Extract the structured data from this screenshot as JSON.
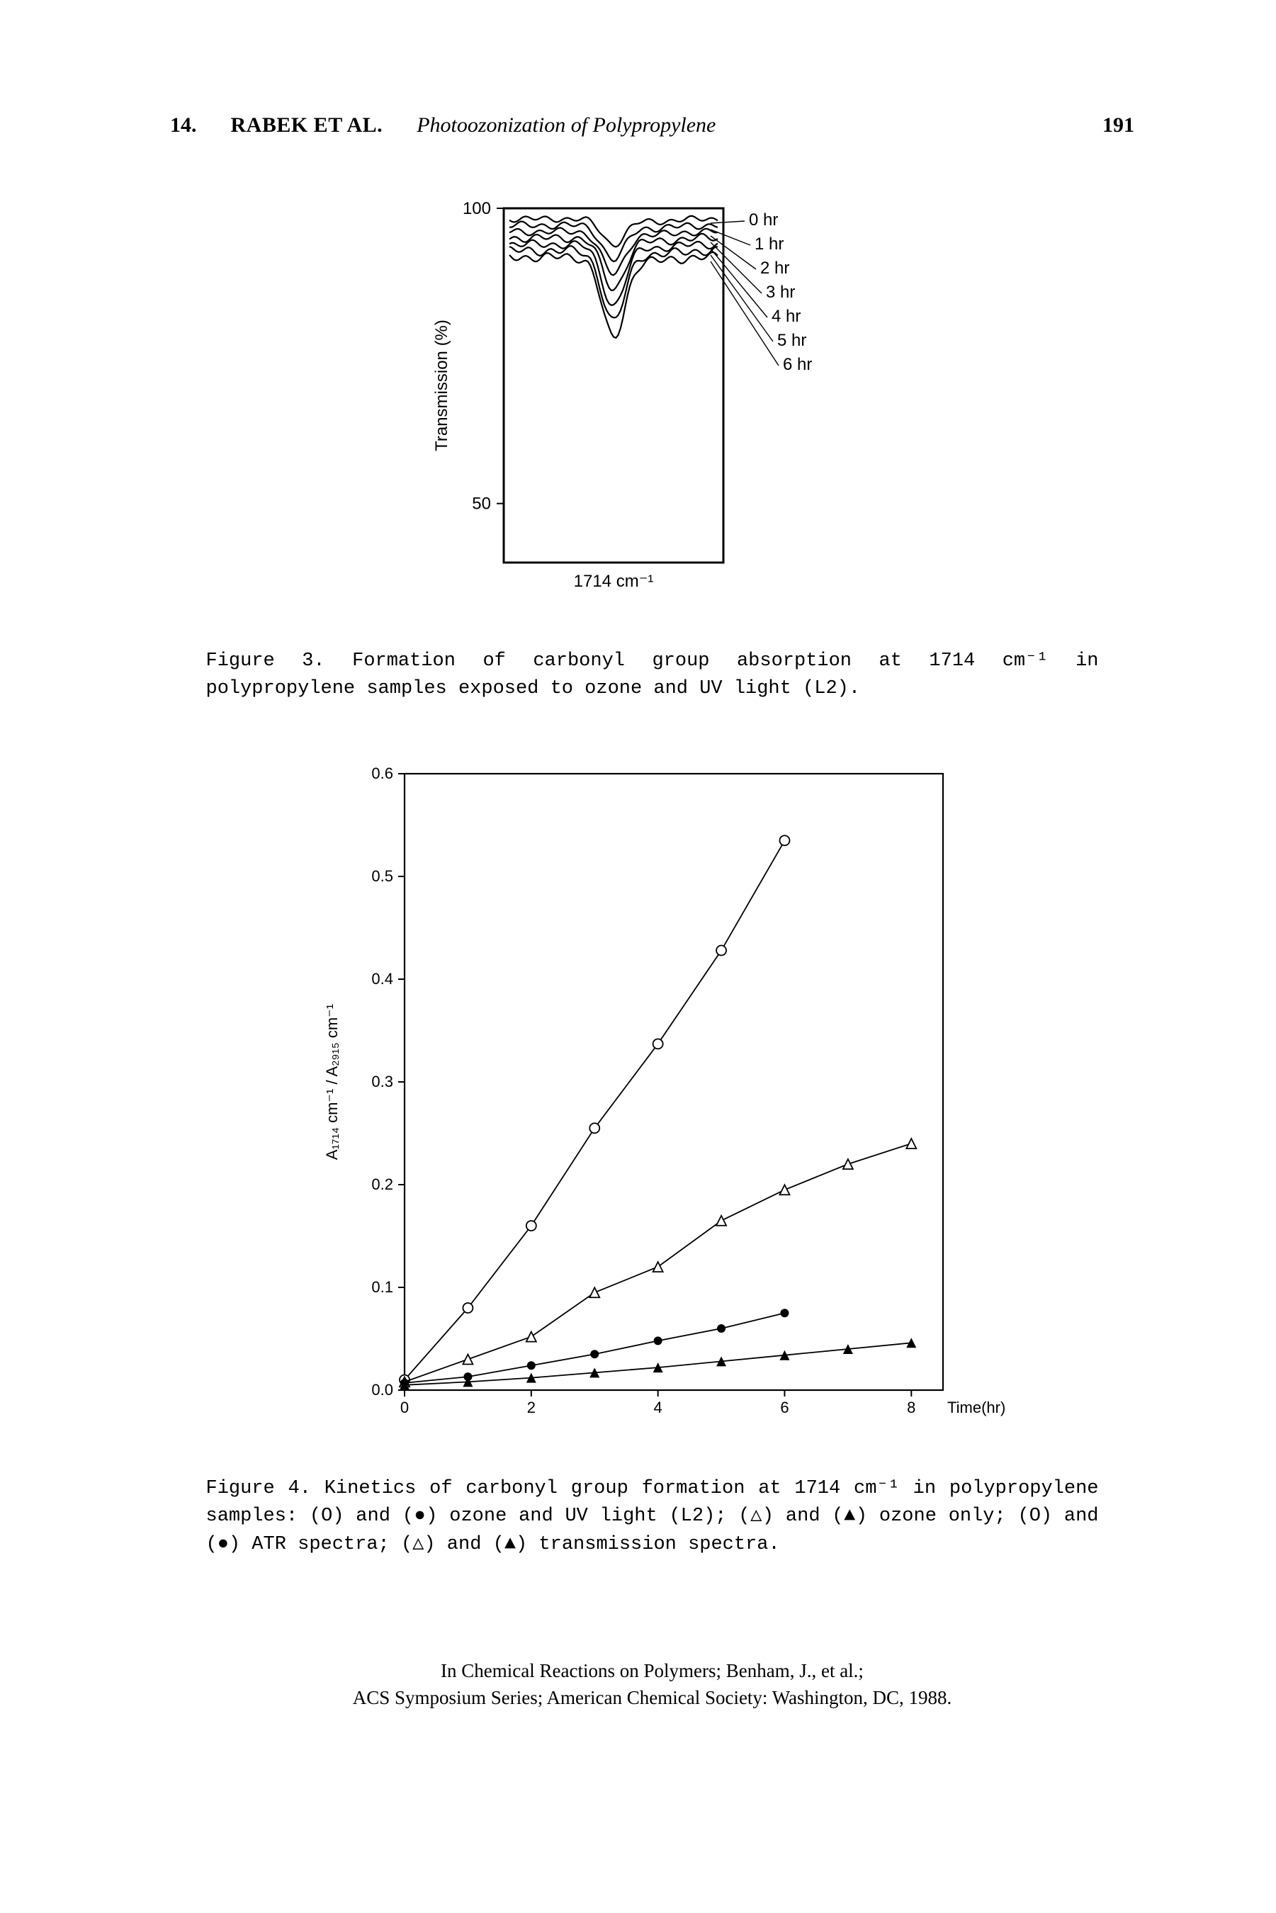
{
  "header": {
    "chapter": "14.",
    "authors": "RABEK ET AL.",
    "title": "Photoozonization of Polypropylene",
    "page": "191"
  },
  "fig3": {
    "type": "line-spectra",
    "y_axis_label": "Transmission (%)",
    "y_ticks": [
      50,
      100
    ],
    "peak_label": "1714 cm⁻¹",
    "series_labels": [
      "0 hr",
      "1 hr",
      "2 hr",
      "3 hr",
      "4 hr",
      "5 hr",
      "6 hr"
    ],
    "series_colors": [
      "#000000",
      "#000000",
      "#000000",
      "#000000",
      "#000000",
      "#000000",
      "#000000"
    ],
    "background_color": "#ffffff",
    "border_color": "#000000",
    "line_width": 2.2,
    "series": [
      {
        "base": 15,
        "dip": 36,
        "wave": 3.0
      },
      {
        "base": 24,
        "dip": 48,
        "wave": 3.5
      },
      {
        "base": 33,
        "dip": 60,
        "wave": 3.5
      },
      {
        "base": 42,
        "dip": 72,
        "wave": 4.0
      },
      {
        "base": 51,
        "dip": 86,
        "wave": 4.0
      },
      {
        "base": 60,
        "dip": 100,
        "wave": 4.5
      },
      {
        "base": 69,
        "dip": 115,
        "wave": 4.5
      }
    ],
    "caption": "Figure 3. Formation of carbonyl group absorption at 1714 cm⁻¹ in polypropylene samples exposed to ozone and UV light (L2)."
  },
  "fig4": {
    "type": "line-scatter",
    "x_axis_label": "Time(hr)",
    "y_axis_label": "A₁₇₁₄ cm⁻¹ / A₂₉₁₅ cm⁻¹",
    "xlim": [
      0,
      8.5
    ],
    "ylim": [
      0.0,
      0.6
    ],
    "xticks": [
      0,
      2,
      4,
      6,
      8
    ],
    "yticks": [
      0.0,
      0.1,
      0.2,
      0.3,
      0.4,
      0.5,
      0.6
    ],
    "background_color": "#ffffff",
    "border_color": "#000000",
    "line_width": 1.8,
    "marker_size": 7,
    "series": [
      {
        "name": "open-circle",
        "marker": "circle-open",
        "color": "#000000",
        "data": [
          [
            0,
            0.01
          ],
          [
            1,
            0.08
          ],
          [
            2,
            0.16
          ],
          [
            3,
            0.255
          ],
          [
            4,
            0.337
          ],
          [
            5,
            0.428
          ],
          [
            6,
            0.535
          ]
        ]
      },
      {
        "name": "open-triangle",
        "marker": "triangle-open",
        "color": "#000000",
        "data": [
          [
            0,
            0.008
          ],
          [
            1,
            0.03
          ],
          [
            2,
            0.052
          ],
          [
            3,
            0.095
          ],
          [
            4,
            0.12
          ],
          [
            5,
            0.165
          ],
          [
            6,
            0.195
          ],
          [
            7,
            0.22
          ],
          [
            8,
            0.24
          ]
        ]
      },
      {
        "name": "filled-circle",
        "marker": "circle-filled",
        "color": "#000000",
        "data": [
          [
            0,
            0.007
          ],
          [
            1,
            0.013
          ],
          [
            2,
            0.024
          ],
          [
            3,
            0.035
          ],
          [
            4,
            0.048
          ],
          [
            5,
            0.06
          ],
          [
            6,
            0.075
          ]
        ]
      },
      {
        "name": "filled-triangle",
        "marker": "triangle-filled",
        "color": "#000000",
        "data": [
          [
            0,
            0.005
          ],
          [
            1,
            0.008
          ],
          [
            2,
            0.012
          ],
          [
            3,
            0.017
          ],
          [
            4,
            0.022
          ],
          [
            5,
            0.028
          ],
          [
            6,
            0.034
          ],
          [
            7,
            0.04
          ],
          [
            8,
            0.046
          ]
        ]
      }
    ],
    "caption": "Figure 4. Kinetics of carbonyl group formation at 1714 cm⁻¹ in polypropylene samples: (O) and (●) ozone and UV light (L2); (△) and (▲) ozone only; (O) and (●) ATR spectra; (△) and (▲) transmission spectra."
  },
  "footer": {
    "line1": "In Chemical Reactions on Polymers; Benham, J., et al.;",
    "line2": "ACS Symposium Series; American Chemical Society: Washington, DC, 1988."
  }
}
